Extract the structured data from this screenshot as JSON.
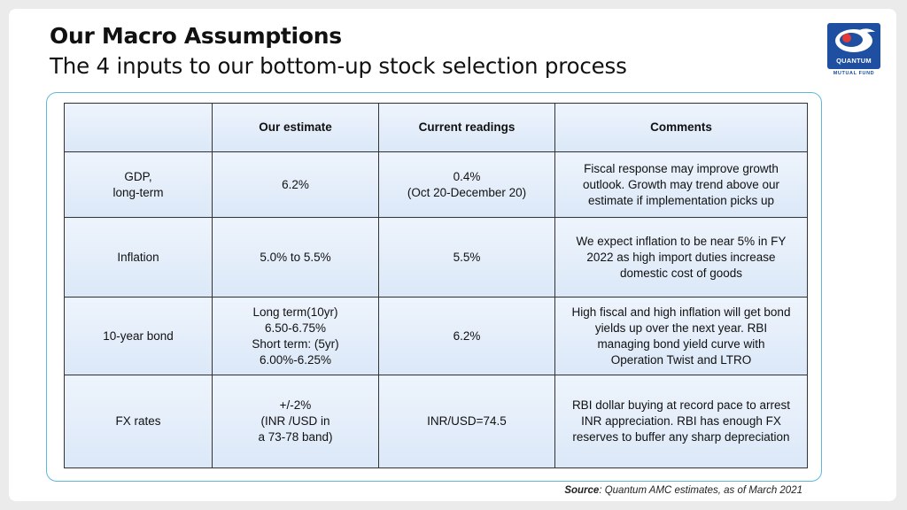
{
  "header": {
    "title": "Our Macro Assumptions",
    "subtitle": "The 4 inputs to our bottom-up stock selection process"
  },
  "logo": {
    "word": "QUANTUM",
    "sub": "MUTUAL FUND",
    "colors": {
      "primary": "#1e4fa0",
      "accent": "#e53935"
    }
  },
  "table": {
    "headers": [
      "",
      "Our estimate",
      "Current readings",
      "Comments"
    ],
    "rows": [
      {
        "label": [
          "GDP,",
          "long-term"
        ],
        "estimate": [
          "6.2%"
        ],
        "current": [
          "0.4%",
          "(Oct 20-December 20)"
        ],
        "comments": [
          "Fiscal response may improve growth",
          "outlook. Growth may trend above our",
          "estimate if implementation picks up"
        ]
      },
      {
        "label": [
          "Inflation"
        ],
        "estimate": [
          "5.0% to 5.5%"
        ],
        "current": [
          "5.5%"
        ],
        "comments": [
          "We expect inflation to be near 5% in FY",
          "2022 as high import duties increase",
          "domestic cost of goods"
        ]
      },
      {
        "label": [
          "10-year bond"
        ],
        "estimate": [
          "Long term(10yr)",
          "6.50-6.75%",
          "Short term: (5yr)",
          "6.00%-6.25%"
        ],
        "current": [
          "6.2%"
        ],
        "comments": [
          "High fiscal and high inflation will get bond",
          "yields up over the next year. RBI",
          "managing bond yield curve with",
          "Operation Twist and LTRO"
        ]
      },
      {
        "label": [
          "FX rates"
        ],
        "estimate": [
          "+/-2%",
          "(INR /USD in",
          "a 73-78 band)"
        ],
        "current": [
          "INR/USD=74.5"
        ],
        "comments": [
          "RBI dollar buying at record pace to arrest",
          "INR appreciation. RBI has enough FX",
          "reserves to buffer any sharp depreciation"
        ]
      }
    ]
  },
  "footer": {
    "source_label": "Source",
    "source_text": ": Quantum AMC estimates, as of March 2021"
  }
}
